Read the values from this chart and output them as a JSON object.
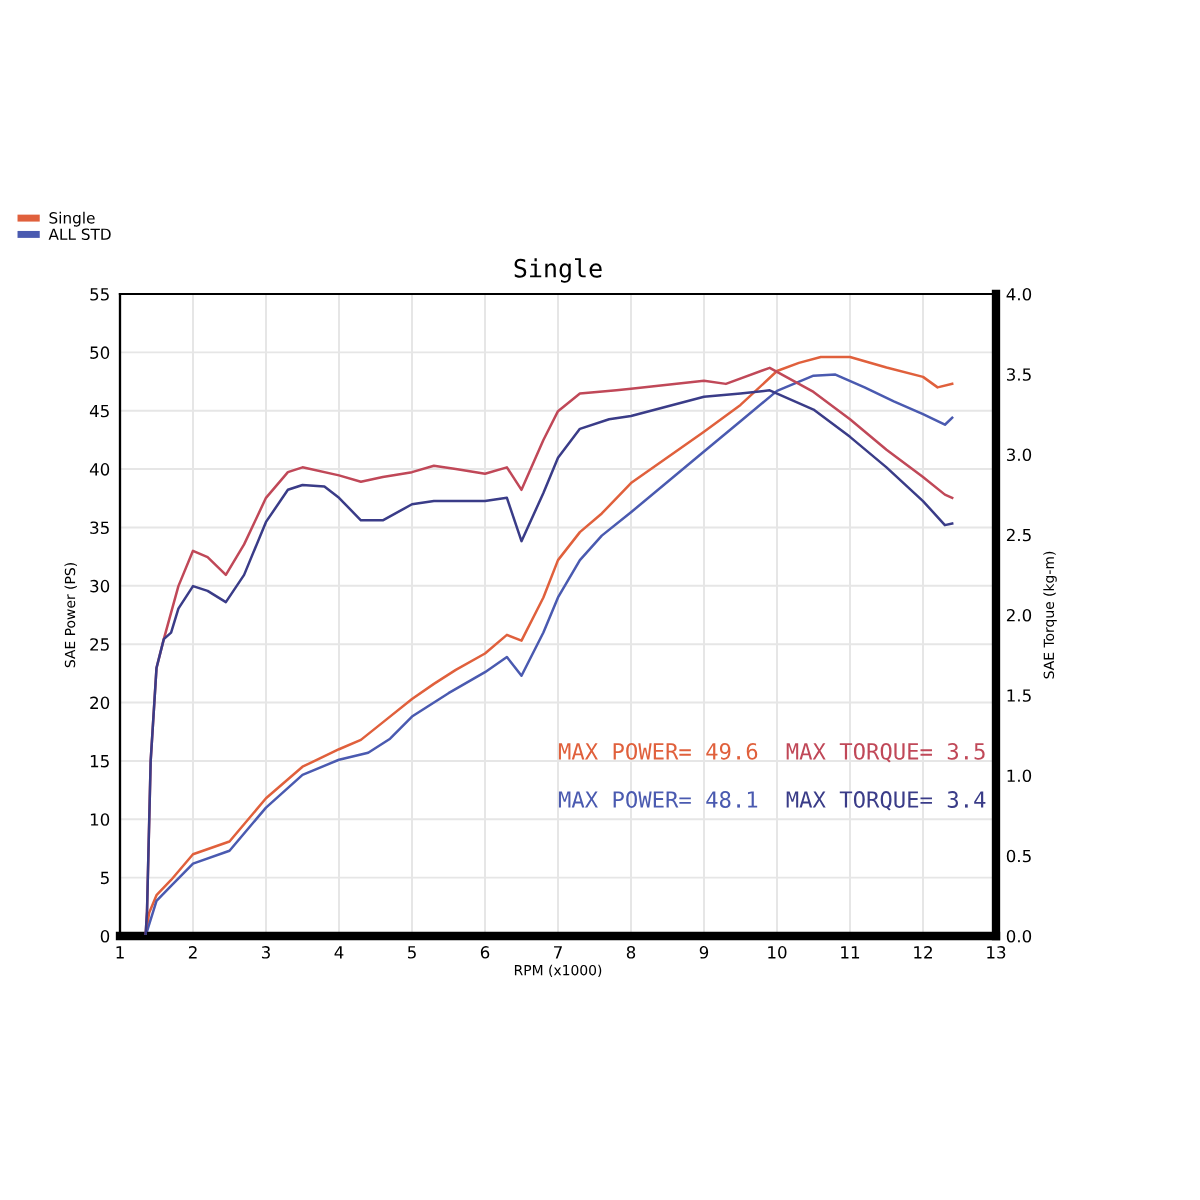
{
  "chart_data": {
    "type": "line",
    "title": "Single",
    "xlabel": "RPM (x1000)",
    "ylabel": "SAE Power (PS)",
    "y2label": "SAE Torque (kg-m)",
    "xlim": [
      1,
      13
    ],
    "xticks": [
      1,
      2,
      3,
      4,
      5,
      6,
      7,
      8,
      9,
      10,
      11,
      12,
      13
    ],
    "ylim": [
      0,
      55
    ],
    "yticks": [
      0,
      5,
      10,
      15,
      20,
      25,
      30,
      35,
      40,
      45,
      50,
      55
    ],
    "y2lim": [
      0,
      4
    ],
    "y2ticks": [
      {
        "value": 0,
        "label": "0.0"
      },
      {
        "value": 0.5,
        "label": "0.5"
      },
      {
        "value": 1,
        "label": "1.0"
      },
      {
        "value": 1.5,
        "label": "1.5"
      },
      {
        "value": 2,
        "label": "2.0"
      },
      {
        "value": 2.5,
        "label": "2.5"
      },
      {
        "value": 3,
        "label": "3.0"
      },
      {
        "value": 3.5,
        "label": "3.5"
      },
      {
        "value": 4,
        "label": "4.0"
      }
    ],
    "grid": true,
    "legend": "top left",
    "marker": "none",
    "line_style": "solid",
    "annotations": [
      "MAX POWER= 49.6",
      "MAX TORQUE= 3.5",
      "MAX POWER= 48.1",
      "MAX TORQUE= 3.4"
    ],
    "series": [
      {
        "name": "Single",
        "color": "#e0603c",
        "x": [
          1.35,
          1.4,
          1.5,
          1.7,
          2.0,
          2.5,
          3.0,
          3.5,
          4.0,
          4.3,
          4.6,
          5.0,
          5.3,
          5.6,
          6.0,
          6.3,
          6.5,
          6.8,
          7.0,
          7.3,
          7.6,
          8.0,
          9.0,
          9.5,
          10.0,
          10.3,
          10.6,
          11.0,
          11.5,
          12.0,
          12.2,
          12.4
        ],
        "values": [
          0,
          2,
          3.5,
          4.8,
          7,
          8.1,
          11.8,
          14.5,
          16,
          16.8,
          18.3,
          20.3,
          21.6,
          22.8,
          24.2,
          25.8,
          25.3,
          29,
          32.2,
          34.6,
          36.2,
          38.8,
          43.2,
          45.5,
          48.4,
          49.1,
          49.6,
          49.6,
          48.7,
          47.9,
          47,
          47.3
        ]
      },
      {
        "color": "#c04858",
        "axis": "y2",
        "x": [
          1.35,
          1.37,
          1.42,
          1.5,
          1.6,
          1.8,
          2.0,
          2.2,
          2.45,
          2.7,
          3.0,
          3.3,
          3.5,
          4.0,
          4.3,
          4.6,
          5.0,
          5.3,
          5.6,
          6.0,
          6.3,
          6.5,
          6.8,
          7.0,
          7.3,
          7.8,
          8.0,
          9.0,
          9.3,
          9.9,
          10.5,
          11.0,
          11.5,
          12.0,
          12.3,
          12.4
        ],
        "values": [
          0,
          0.15,
          1.09,
          1.67,
          1.85,
          2.18,
          2.4,
          2.36,
          2.25,
          2.44,
          2.73,
          2.89,
          2.92,
          2.87,
          2.83,
          2.86,
          2.89,
          2.93,
          2.91,
          2.88,
          2.92,
          2.78,
          3.09,
          3.27,
          3.38,
          3.4,
          3.41,
          3.46,
          3.44,
          3.54,
          3.39,
          3.22,
          3.03,
          2.86,
          2.75,
          2.73
        ]
      },
      {
        "name": "ALL STD",
        "color": "#4a5ab0",
        "x": [
          1.35,
          1.5,
          1.7,
          2.0,
          2.5,
          3.0,
          3.5,
          4.0,
          4.4,
          4.7,
          5.0,
          5.5,
          6.0,
          6.3,
          6.5,
          6.8,
          7.0,
          7.3,
          7.6,
          8.0,
          9.0,
          9.5,
          10.0,
          10.5,
          10.8,
          11.2,
          11.6,
          12.0,
          12.3,
          12.4
        ],
        "values": [
          0,
          3,
          4.3,
          6.2,
          7.3,
          11,
          13.8,
          15.1,
          15.7,
          16.9,
          18.8,
          20.8,
          22.6,
          23.9,
          22.3,
          26,
          29,
          32.2,
          34.3,
          36.3,
          41.5,
          44.1,
          46.7,
          48,
          48.1,
          47,
          45.8,
          44.7,
          43.8,
          44.4
        ]
      },
      {
        "color": "#3a3c88",
        "axis": "y2",
        "x": [
          1.35,
          1.37,
          1.42,
          1.5,
          1.6,
          1.7,
          1.8,
          2.0,
          2.2,
          2.45,
          2.7,
          3.0,
          3.3,
          3.5,
          3.8,
          4.0,
          4.3,
          4.6,
          5.0,
          5.3,
          6.0,
          6.3,
          6.5,
          6.8,
          7.0,
          7.3,
          7.7,
          8.0,
          9.0,
          9.5,
          9.9,
          10.5,
          11.0,
          11.5,
          12.0,
          12.3,
          12.4
        ],
        "values": [
          0,
          0.15,
          1.09,
          1.67,
          1.85,
          1.89,
          2.04,
          2.18,
          2.15,
          2.08,
          2.25,
          2.58,
          2.78,
          2.81,
          2.8,
          2.73,
          2.59,
          2.59,
          2.69,
          2.71,
          2.71,
          2.73,
          2.46,
          2.76,
          2.98,
          3.16,
          3.22,
          3.24,
          3.36,
          3.38,
          3.4,
          3.28,
          3.11,
          2.92,
          2.71,
          2.56,
          2.57
        ]
      }
    ]
  }
}
